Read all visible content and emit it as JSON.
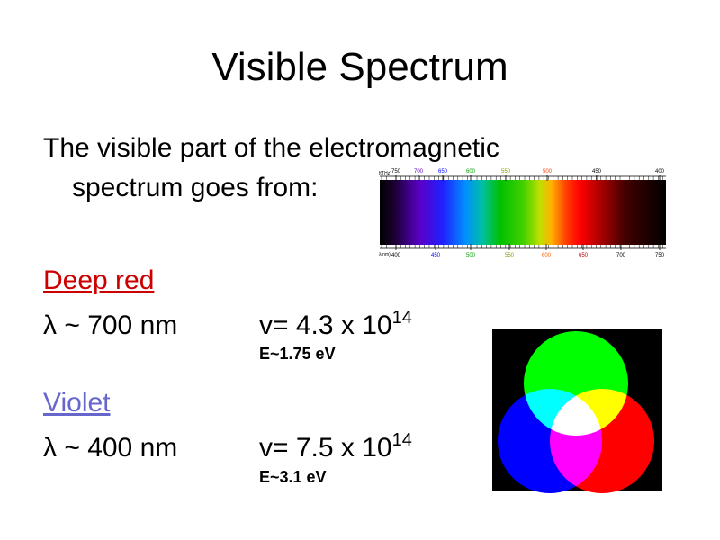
{
  "title": "Visible Spectrum",
  "intro": {
    "line1": "The visible part of the electromagnetic",
    "line2": "spectrum goes from:"
  },
  "spectrum": {
    "top_axis_label": "f(THz)",
    "top_ticks": [
      750,
      700,
      650,
      600,
      550,
      500,
      450,
      400
    ],
    "bottom_axis_label": "λ(nm)",
    "bottom_ticks": [
      400,
      450,
      500,
      550,
      600,
      650,
      700,
      750
    ]
  },
  "items": [
    {
      "name": "Deep red",
      "wavelength": "λ ~ 700 nm",
      "frequency": "v= 4.3 x 10",
      "exponent": "14",
      "energy": "E~1.75 eV"
    },
    {
      "name": "Violet",
      "wavelength": "λ ~ 400 nm",
      "frequency": "v= 7.5 x 10",
      "exponent": "14",
      "energy": "E~3.1 eV"
    }
  ]
}
